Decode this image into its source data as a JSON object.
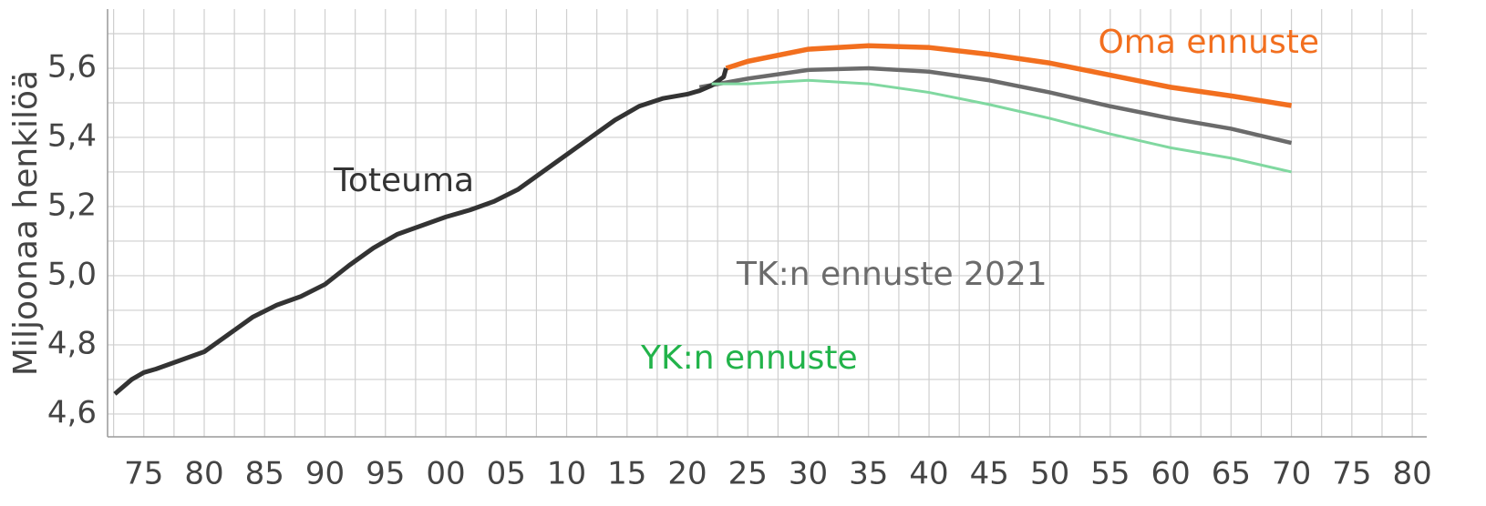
{
  "chart_data": {
    "type": "line",
    "y_label": "Miljoonaa henkilöä",
    "xlim": [
      1972,
      2081.2
    ],
    "ylim": [
      4.534,
      5.771
    ],
    "xticks": [
      {
        "value": 1975,
        "label": "75"
      },
      {
        "value": 1980,
        "label": "80"
      },
      {
        "value": 1985,
        "label": "85"
      },
      {
        "value": 1990,
        "label": "90"
      },
      {
        "value": 1995,
        "label": "95"
      },
      {
        "value": 2000,
        "label": "00"
      },
      {
        "value": 2005,
        "label": "05"
      },
      {
        "value": 2010,
        "label": "10"
      },
      {
        "value": 2015,
        "label": "15"
      },
      {
        "value": 2020,
        "label": "20"
      },
      {
        "value": 2025,
        "label": "25"
      },
      {
        "value": 2030,
        "label": "30"
      },
      {
        "value": 2035,
        "label": "35"
      },
      {
        "value": 2040,
        "label": "40"
      },
      {
        "value": 2045,
        "label": "45"
      },
      {
        "value": 2050,
        "label": "50"
      },
      {
        "value": 2055,
        "label": "55"
      },
      {
        "value": 2060,
        "label": "60"
      },
      {
        "value": 2065,
        "label": "65"
      },
      {
        "value": 2070,
        "label": "70"
      },
      {
        "value": 2075,
        "label": "75"
      },
      {
        "value": 2080,
        "label": "80"
      }
    ],
    "x_minor_grid": [
      1972.5,
      1977.5,
      1982.5,
      1987.5,
      1992.5,
      1997.5,
      2002.5,
      2007.5,
      2012.5,
      2017.5,
      2022.5,
      2027.5,
      2032.5,
      2037.5,
      2042.5,
      2047.5,
      2052.5,
      2057.5,
      2062.5,
      2067.5,
      2072.5,
      2077.5
    ],
    "yticks": [
      {
        "value": 4.6,
        "label": "4,6"
      },
      {
        "value": 4.8,
        "label": "4,8"
      },
      {
        "value": 5.0,
        "label": "5,0"
      },
      {
        "value": 5.2,
        "label": "5,2"
      },
      {
        "value": 5.4,
        "label": "5,4"
      },
      {
        "value": 5.6,
        "label": "5,6"
      }
    ],
    "y_minor_grid": [
      4.7,
      4.9,
      5.1,
      5.3,
      5.5,
      5.7
    ],
    "grid": true,
    "series": [
      {
        "name": "Toteuma",
        "color": "#333333",
        "label_color": "#333333",
        "x": [
          1972.6,
          1974,
          1975,
          1976,
          1978,
          1980,
          1982,
          1984,
          1986,
          1988,
          1990,
          1992,
          1994,
          1996,
          1998,
          2000,
          2002,
          2004,
          2006,
          2008,
          2010,
          2012,
          2014,
          2016,
          2018,
          2020,
          2021,
          2022,
          2023,
          2023.2
        ],
        "values": [
          4.658,
          4.7,
          4.72,
          4.73,
          4.755,
          4.78,
          4.83,
          4.88,
          4.915,
          4.94,
          4.975,
          5.03,
          5.08,
          5.12,
          5.145,
          5.17,
          5.19,
          5.215,
          5.25,
          5.3,
          5.35,
          5.4,
          5.45,
          5.49,
          5.513,
          5.525,
          5.535,
          5.55,
          5.575,
          5.6
        ]
      },
      {
        "name": "Oma ennuste",
        "color": "#f26f1f",
        "label_color": "#f26f1f",
        "x": [
          2023.2,
          2025,
          2030,
          2035,
          2040,
          2045,
          2050,
          2055,
          2060,
          2065,
          2070
        ],
        "values": [
          5.6,
          5.62,
          5.655,
          5.665,
          5.66,
          5.64,
          5.615,
          5.58,
          5.545,
          5.52,
          5.492
        ]
      },
      {
        "name": "TK:n ennuste 2021",
        "color": "#6b6b6b",
        "label_color": "#6b6b6b",
        "x": [
          2021,
          2025,
          2030,
          2035,
          2040,
          2045,
          2050,
          2055,
          2060,
          2065,
          2070
        ],
        "values": [
          5.545,
          5.57,
          5.595,
          5.6,
          5.59,
          5.565,
          5.53,
          5.49,
          5.455,
          5.425,
          5.384
        ]
      },
      {
        "name": "YK:n ennuste",
        "color": "#80d8a0",
        "label_color": "#22b34a",
        "x": [
          2022,
          2025,
          2030,
          2035,
          2040,
          2045,
          2050,
          2055,
          2060,
          2065,
          2070
        ],
        "values": [
          5.555,
          5.555,
          5.565,
          5.555,
          5.53,
          5.495,
          5.455,
          5.41,
          5.37,
          5.34,
          5.3
        ]
      }
    ]
  }
}
